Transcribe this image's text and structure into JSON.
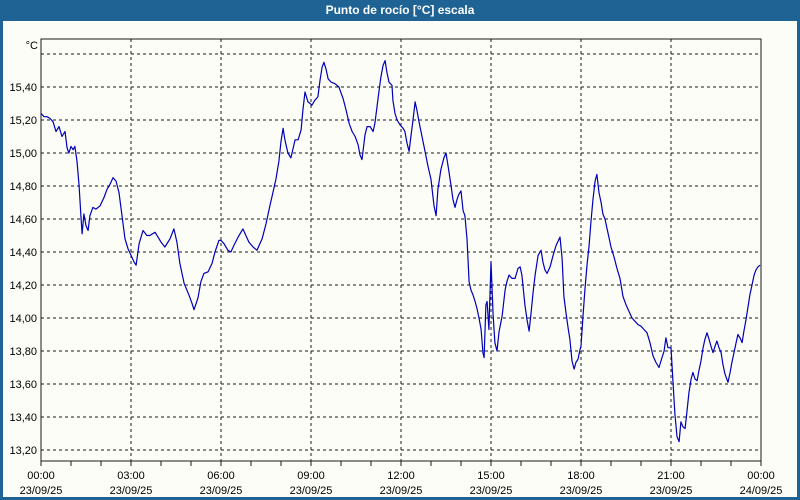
{
  "title": "Punto de rocío [°C] escala",
  "colors": {
    "titlebar": "#1e6394",
    "frame": "#1e6394",
    "title_text": "#ffffff",
    "background": "#fcfdf7",
    "grid": "#1a1a1a",
    "text": "#000000",
    "line": "#0000b8"
  },
  "chart_data": {
    "type": "line",
    "title": "Punto de rocío [°C] escala",
    "unit": "°C",
    "xlabel": "",
    "ylabel": "°C",
    "xlim_hours": [
      0,
      24
    ],
    "ylim": [
      13.133,
      15.691
    ],
    "grid": true,
    "legend": false,
    "y_ticks": [
      {
        "v": 15.6,
        "label": ""
      },
      {
        "v": 15.4,
        "label": "15,40"
      },
      {
        "v": 15.2,
        "label": "15,20"
      },
      {
        "v": 15.0,
        "label": "15,00"
      },
      {
        "v": 14.8,
        "label": "14,80"
      },
      {
        "v": 14.6,
        "label": "14,60"
      },
      {
        "v": 14.4,
        "label": "14,40"
      },
      {
        "v": 14.2,
        "label": "14,20"
      },
      {
        "v": 14.0,
        "label": "14,00"
      },
      {
        "v": 13.8,
        "label": "13,80"
      },
      {
        "v": 13.6,
        "label": "13,60"
      },
      {
        "v": 13.4,
        "label": "13,40"
      },
      {
        "v": 13.2,
        "label": "13,20"
      }
    ],
    "x_ticks": [
      {
        "hour": 0,
        "time": "00:00",
        "date": "23/09/25"
      },
      {
        "hour": 3,
        "time": "03:00",
        "date": "23/09/25"
      },
      {
        "hour": 6,
        "time": "06:00",
        "date": "23/09/25"
      },
      {
        "hour": 9,
        "time": "09:00",
        "date": "23/09/25"
      },
      {
        "hour": 12,
        "time": "12:00",
        "date": "23/09/25"
      },
      {
        "hour": 15,
        "time": "15:00",
        "date": "23/09/25"
      },
      {
        "hour": 18,
        "time": "18:00",
        "date": "23/09/25"
      },
      {
        "hour": 21,
        "time": "21:00",
        "date": "23/09/25"
      },
      {
        "hour": 24,
        "time": "00:00",
        "date": "24/09/25"
      }
    ],
    "minor_tick_every_hours": 1,
    "series": [
      {
        "name": "Punto de rocío",
        "color": "#0000b8",
        "points": [
          [
            0.0,
            15.24
          ],
          [
            0.1,
            15.22
          ],
          [
            0.2,
            15.22
          ],
          [
            0.3,
            15.21
          ],
          [
            0.4,
            15.19
          ],
          [
            0.5,
            15.13
          ],
          [
            0.6,
            15.16
          ],
          [
            0.7,
            15.1
          ],
          [
            0.8,
            15.13
          ],
          [
            0.87,
            15.03
          ],
          [
            0.93,
            15.0
          ],
          [
            1.0,
            15.04
          ],
          [
            1.07,
            15.02
          ],
          [
            1.13,
            15.04
          ],
          [
            1.2,
            14.95
          ],
          [
            1.27,
            14.8
          ],
          [
            1.33,
            14.62
          ],
          [
            1.37,
            14.51
          ],
          [
            1.43,
            14.63
          ],
          [
            1.5,
            14.56
          ],
          [
            1.57,
            14.53
          ],
          [
            1.63,
            14.62
          ],
          [
            1.73,
            14.67
          ],
          [
            1.83,
            14.66
          ],
          [
            1.97,
            14.68
          ],
          [
            2.1,
            14.73
          ],
          [
            2.2,
            14.78
          ],
          [
            2.3,
            14.81
          ],
          [
            2.4,
            14.85
          ],
          [
            2.5,
            14.83
          ],
          [
            2.6,
            14.76
          ],
          [
            2.7,
            14.62
          ],
          [
            2.8,
            14.48
          ],
          [
            2.9,
            14.42
          ],
          [
            3.0,
            14.38
          ],
          [
            3.1,
            14.34
          ],
          [
            3.17,
            14.32
          ],
          [
            3.27,
            14.45
          ],
          [
            3.4,
            14.53
          ],
          [
            3.53,
            14.5
          ],
          [
            3.63,
            14.5
          ],
          [
            3.8,
            14.52
          ],
          [
            3.9,
            14.49
          ],
          [
            4.0,
            14.46
          ],
          [
            4.13,
            14.43
          ],
          [
            4.3,
            14.48
          ],
          [
            4.43,
            14.54
          ],
          [
            4.53,
            14.46
          ],
          [
            4.63,
            14.33
          ],
          [
            4.77,
            14.21
          ],
          [
            4.93,
            14.14
          ],
          [
            5.03,
            14.09
          ],
          [
            5.1,
            14.05
          ],
          [
            5.23,
            14.12
          ],
          [
            5.33,
            14.22
          ],
          [
            5.43,
            14.27
          ],
          [
            5.57,
            14.28
          ],
          [
            5.7,
            14.33
          ],
          [
            5.8,
            14.4
          ],
          [
            5.93,
            14.47
          ],
          [
            6.0,
            14.47
          ],
          [
            6.1,
            14.45
          ],
          [
            6.23,
            14.41
          ],
          [
            6.33,
            14.4
          ],
          [
            6.43,
            14.44
          ],
          [
            6.57,
            14.49
          ],
          [
            6.73,
            14.54
          ],
          [
            6.83,
            14.5
          ],
          [
            6.93,
            14.46
          ],
          [
            7.07,
            14.43
          ],
          [
            7.2,
            14.41
          ],
          [
            7.37,
            14.48
          ],
          [
            7.5,
            14.57
          ],
          [
            7.63,
            14.68
          ],
          [
            7.73,
            14.76
          ],
          [
            7.83,
            14.84
          ],
          [
            7.93,
            14.95
          ],
          [
            8.0,
            15.07
          ],
          [
            8.07,
            15.15
          ],
          [
            8.13,
            15.08
          ],
          [
            8.23,
            15.0
          ],
          [
            8.33,
            14.97
          ],
          [
            8.47,
            15.08
          ],
          [
            8.57,
            15.08
          ],
          [
            8.67,
            15.14
          ],
          [
            8.73,
            15.26
          ],
          [
            8.8,
            15.37
          ],
          [
            8.9,
            15.31
          ],
          [
            8.97,
            15.3
          ],
          [
            9.03,
            15.29
          ],
          [
            9.13,
            15.32
          ],
          [
            9.23,
            15.34
          ],
          [
            9.3,
            15.44
          ],
          [
            9.37,
            15.52
          ],
          [
            9.43,
            15.55
          ],
          [
            9.5,
            15.51
          ],
          [
            9.57,
            15.45
          ],
          [
            9.67,
            15.43
          ],
          [
            9.8,
            15.42
          ],
          [
            9.93,
            15.4
          ],
          [
            10.07,
            15.33
          ],
          [
            10.17,
            15.26
          ],
          [
            10.27,
            15.18
          ],
          [
            10.37,
            15.13
          ],
          [
            10.47,
            15.1
          ],
          [
            10.57,
            15.05
          ],
          [
            10.63,
            14.99
          ],
          [
            10.7,
            14.96
          ],
          [
            10.8,
            15.11
          ],
          [
            10.87,
            15.16
          ],
          [
            10.97,
            15.16
          ],
          [
            11.07,
            15.13
          ],
          [
            11.13,
            15.18
          ],
          [
            11.2,
            15.28
          ],
          [
            11.27,
            15.38
          ],
          [
            11.33,
            15.46
          ],
          [
            11.4,
            15.53
          ],
          [
            11.47,
            15.56
          ],
          [
            11.53,
            15.49
          ],
          [
            11.6,
            15.43
          ],
          [
            11.7,
            15.41
          ],
          [
            11.73,
            15.32
          ],
          [
            11.8,
            15.24
          ],
          [
            11.87,
            15.2
          ],
          [
            11.97,
            15.17
          ],
          [
            12.07,
            15.15
          ],
          [
            12.13,
            15.13
          ],
          [
            12.2,
            15.06
          ],
          [
            12.27,
            15.01
          ],
          [
            12.33,
            15.1
          ],
          [
            12.4,
            15.2
          ],
          [
            12.47,
            15.31
          ],
          [
            12.53,
            15.26
          ],
          [
            12.6,
            15.19
          ],
          [
            12.7,
            15.1
          ],
          [
            12.8,
            15.01
          ],
          [
            12.9,
            14.92
          ],
          [
            13.0,
            14.84
          ],
          [
            13.1,
            14.68
          ],
          [
            13.17,
            14.62
          ],
          [
            13.23,
            14.78
          ],
          [
            13.33,
            14.9
          ],
          [
            13.43,
            14.97
          ],
          [
            13.5,
            15.0
          ],
          [
            13.57,
            14.92
          ],
          [
            13.67,
            14.8
          ],
          [
            13.73,
            14.72
          ],
          [
            13.8,
            14.67
          ],
          [
            13.87,
            14.72
          ],
          [
            13.93,
            14.75
          ],
          [
            14.0,
            14.77
          ],
          [
            14.07,
            14.65
          ],
          [
            14.13,
            14.62
          ],
          [
            14.2,
            14.48
          ],
          [
            14.27,
            14.22
          ],
          [
            14.33,
            14.17
          ],
          [
            14.4,
            14.14
          ],
          [
            14.47,
            14.1
          ],
          [
            14.53,
            14.06
          ],
          [
            14.6,
            14.0
          ],
          [
            14.67,
            13.93
          ],
          [
            14.73,
            13.79
          ],
          [
            14.77,
            13.76
          ],
          [
            14.83,
            14.08
          ],
          [
            14.87,
            14.1
          ],
          [
            14.93,
            13.93
          ],
          [
            15.0,
            14.34
          ],
          [
            15.07,
            14.02
          ],
          [
            15.13,
            13.85
          ],
          [
            15.2,
            13.8
          ],
          [
            15.27,
            13.92
          ],
          [
            15.37,
            14.01
          ],
          [
            15.47,
            14.17
          ],
          [
            15.53,
            14.22
          ],
          [
            15.6,
            14.26
          ],
          [
            15.7,
            14.24
          ],
          [
            15.8,
            14.24
          ],
          [
            15.9,
            14.3
          ],
          [
            15.97,
            14.31
          ],
          [
            16.03,
            14.26
          ],
          [
            16.13,
            14.08
          ],
          [
            16.2,
            13.99
          ],
          [
            16.27,
            13.92
          ],
          [
            16.33,
            14.02
          ],
          [
            16.4,
            14.15
          ],
          [
            16.47,
            14.26
          ],
          [
            16.57,
            14.38
          ],
          [
            16.67,
            14.41
          ],
          [
            16.73,
            14.34
          ],
          [
            16.8,
            14.29
          ],
          [
            16.87,
            14.27
          ],
          [
            16.97,
            14.31
          ],
          [
            17.07,
            14.38
          ],
          [
            17.17,
            14.44
          ],
          [
            17.3,
            14.49
          ],
          [
            17.37,
            14.36
          ],
          [
            17.43,
            14.13
          ],
          [
            17.5,
            14.03
          ],
          [
            17.57,
            13.94
          ],
          [
            17.63,
            13.87
          ],
          [
            17.7,
            13.74
          ],
          [
            17.77,
            13.69
          ],
          [
            17.83,
            13.73
          ],
          [
            17.9,
            13.75
          ],
          [
            17.97,
            13.81
          ],
          [
            18.0,
            13.83
          ],
          [
            18.07,
            14.02
          ],
          [
            18.13,
            14.17
          ],
          [
            18.2,
            14.32
          ],
          [
            18.27,
            14.44
          ],
          [
            18.33,
            14.58
          ],
          [
            18.4,
            14.72
          ],
          [
            18.47,
            14.83
          ],
          [
            18.53,
            14.87
          ],
          [
            18.6,
            14.76
          ],
          [
            18.67,
            14.7
          ],
          [
            18.73,
            14.63
          ],
          [
            18.8,
            14.6
          ],
          [
            18.87,
            14.54
          ],
          [
            18.93,
            14.49
          ],
          [
            19.0,
            14.43
          ],
          [
            19.1,
            14.37
          ],
          [
            19.2,
            14.3
          ],
          [
            19.3,
            14.24
          ],
          [
            19.4,
            14.13
          ],
          [
            19.5,
            14.08
          ],
          [
            19.6,
            14.04
          ],
          [
            19.7,
            14.0
          ],
          [
            19.8,
            13.98
          ],
          [
            19.9,
            13.96
          ],
          [
            20.0,
            13.95
          ],
          [
            20.1,
            13.93
          ],
          [
            20.2,
            13.91
          ],
          [
            20.3,
            13.85
          ],
          [
            20.4,
            13.77
          ],
          [
            20.5,
            13.73
          ],
          [
            20.6,
            13.7
          ],
          [
            20.7,
            13.76
          ],
          [
            20.77,
            13.8
          ],
          [
            20.83,
            13.88
          ],
          [
            20.9,
            13.82
          ],
          [
            21.0,
            13.82
          ],
          [
            21.07,
            13.6
          ],
          [
            21.13,
            13.42
          ],
          [
            21.2,
            13.28
          ],
          [
            21.27,
            13.25
          ],
          [
            21.33,
            13.37
          ],
          [
            21.4,
            13.34
          ],
          [
            21.47,
            13.33
          ],
          [
            21.53,
            13.43
          ],
          [
            21.6,
            13.55
          ],
          [
            21.67,
            13.63
          ],
          [
            21.73,
            13.67
          ],
          [
            21.8,
            13.63
          ],
          [
            21.87,
            13.62
          ],
          [
            21.93,
            13.68
          ],
          [
            22.0,
            13.74
          ],
          [
            22.07,
            13.82
          ],
          [
            22.13,
            13.87
          ],
          [
            22.2,
            13.91
          ],
          [
            22.27,
            13.87
          ],
          [
            22.33,
            13.83
          ],
          [
            22.4,
            13.79
          ],
          [
            22.47,
            13.83
          ],
          [
            22.53,
            13.86
          ],
          [
            22.6,
            13.82
          ],
          [
            22.67,
            13.79
          ],
          [
            22.73,
            13.72
          ],
          [
            22.8,
            13.66
          ],
          [
            22.9,
            13.61
          ],
          [
            22.97,
            13.67
          ],
          [
            23.03,
            13.73
          ],
          [
            23.1,
            13.79
          ],
          [
            23.17,
            13.85
          ],
          [
            23.23,
            13.9
          ],
          [
            23.3,
            13.88
          ],
          [
            23.37,
            13.85
          ],
          [
            23.43,
            13.92
          ],
          [
            23.5,
            13.99
          ],
          [
            23.57,
            14.07
          ],
          [
            23.63,
            14.14
          ],
          [
            23.7,
            14.2
          ],
          [
            23.77,
            14.26
          ],
          [
            23.83,
            14.29
          ],
          [
            23.9,
            14.31
          ],
          [
            23.97,
            14.32
          ]
        ]
      }
    ]
  }
}
